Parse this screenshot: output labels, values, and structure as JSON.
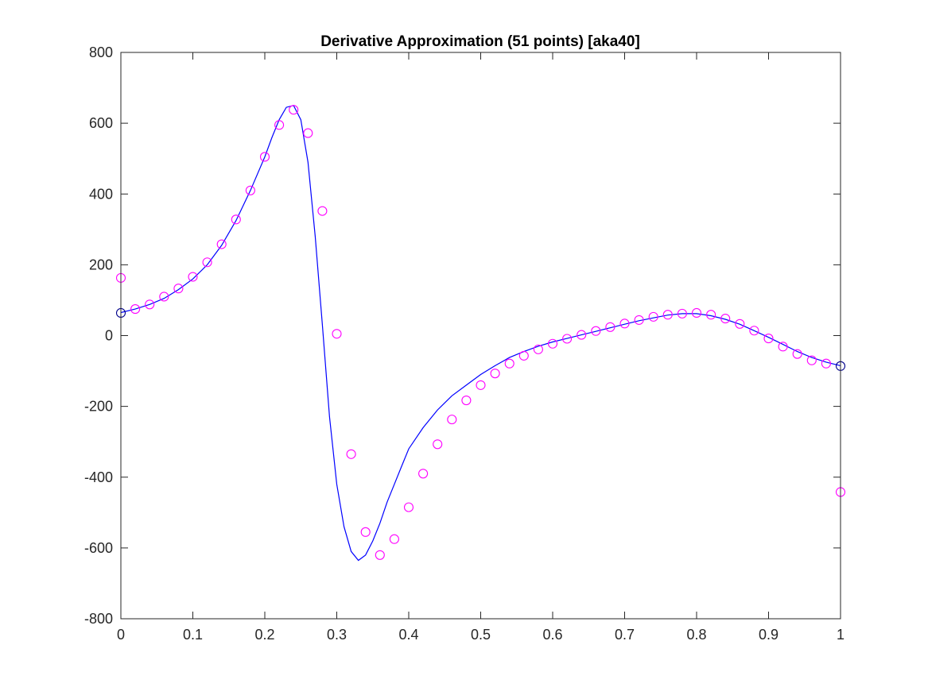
{
  "chart_data": {
    "type": "line",
    "title": "Derivative Approximation (51 points) [aka40]",
    "xlabel": "",
    "ylabel": "",
    "xlim": [
      0,
      1
    ],
    "ylim": [
      -800,
      800
    ],
    "xticks": [
      0,
      0.1,
      0.2,
      0.3,
      0.4,
      0.5,
      0.6,
      0.7,
      0.8,
      0.9,
      1
    ],
    "xtick_labels": [
      "0",
      "0.1",
      "0.2",
      "0.3",
      "0.4",
      "0.5",
      "0.6",
      "0.7",
      "0.8",
      "0.9",
      "1"
    ],
    "yticks": [
      -800,
      -600,
      -400,
      -200,
      0,
      200,
      400,
      600,
      800
    ],
    "ytick_labels": [
      "-800",
      "-600",
      "-400",
      "-200",
      "0",
      "200",
      "400",
      "600",
      "800"
    ],
    "grid": false,
    "colors": {
      "curve": "#0000ff",
      "approx": "#ff00ff",
      "endpoints": "#00008b",
      "axes": "#262626"
    },
    "series": [
      {
        "style": "line",
        "x": [
          0,
          0.02,
          0.04,
          0.06,
          0.08,
          0.1,
          0.12,
          0.14,
          0.16,
          0.18,
          0.2,
          0.21,
          0.22,
          0.23,
          0.24,
          0.25,
          0.26,
          0.27,
          0.28,
          0.29,
          0.3,
          0.31,
          0.32,
          0.33,
          0.34,
          0.35,
          0.36,
          0.37,
          0.38,
          0.39,
          0.4,
          0.42,
          0.44,
          0.46,
          0.48,
          0.5,
          0.52,
          0.54,
          0.56,
          0.58,
          0.6,
          0.62,
          0.64,
          0.66,
          0.68,
          0.7,
          0.72,
          0.74,
          0.76,
          0.78,
          0.8,
          0.82,
          0.84,
          0.86,
          0.88,
          0.9,
          0.92,
          0.94,
          0.96,
          0.98,
          1
        ],
        "y": [
          65,
          75,
          88,
          105,
          130,
          160,
          200,
          255,
          325,
          410,
          505,
          560,
          610,
          645,
          650,
          610,
          490,
          280,
          30,
          -230,
          -420,
          -540,
          -610,
          -635,
          -620,
          -580,
          -530,
          -470,
          -420,
          -370,
          -320,
          -260,
          -210,
          -170,
          -140,
          -110,
          -85,
          -62,
          -45,
          -30,
          -18,
          -8,
          2,
          12,
          22,
          32,
          42,
          50,
          58,
          62,
          62,
          56,
          46,
          32,
          14,
          -5,
          -25,
          -45,
          -62,
          -75,
          -85
        ]
      },
      {
        "style": "markers",
        "x": [
          0,
          0.02,
          0.04,
          0.06,
          0.08,
          0.1,
          0.12,
          0.14,
          0.16,
          0.18,
          0.2,
          0.22,
          0.24,
          0.26,
          0.28,
          0.3,
          0.32,
          0.34,
          0.36,
          0.38,
          0.4,
          0.42,
          0.44,
          0.46,
          0.48,
          0.5,
          0.52,
          0.54,
          0.56,
          0.58,
          0.6,
          0.62,
          0.64,
          0.66,
          0.68,
          0.7,
          0.72,
          0.74,
          0.76,
          0.78,
          0.8,
          0.82,
          0.84,
          0.86,
          0.88,
          0.9,
          0.92,
          0.94,
          0.96,
          0.98,
          1
        ],
        "y": [
          163,
          75,
          88,
          110,
          133,
          166,
          207,
          258,
          328,
          410,
          505,
          595,
          638,
          572,
          352,
          5,
          -335,
          -555,
          -620,
          -575,
          -485,
          -390,
          -307,
          -237,
          -183,
          -140,
          -107,
          -79,
          -57,
          -39,
          -23,
          -9,
          2,
          13,
          24,
          34,
          44,
          53,
          59,
          62,
          64,
          59,
          48,
          33,
          14,
          -8,
          -31,
          -52,
          -70,
          -79,
          -442
        ]
      },
      {
        "style": "markers",
        "x": [
          0,
          1
        ],
        "y": [
          64,
          -86
        ]
      }
    ]
  }
}
